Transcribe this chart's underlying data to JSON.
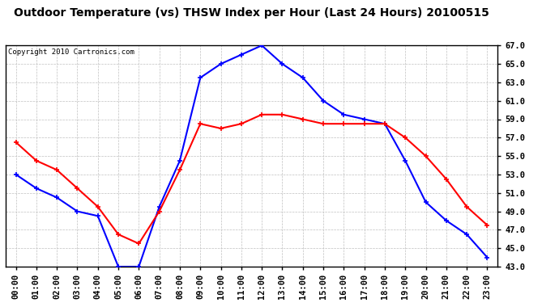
{
  "title": "Outdoor Temperature (vs) THSW Index per Hour (Last 24 Hours) 20100515",
  "copyright": "Copyright 2010 Cartronics.com",
  "hours": [
    "00:00",
    "01:00",
    "02:00",
    "03:00",
    "04:00",
    "05:00",
    "06:00",
    "07:00",
    "08:00",
    "09:00",
    "10:00",
    "11:00",
    "12:00",
    "13:00",
    "14:00",
    "15:00",
    "16:00",
    "17:00",
    "18:00",
    "19:00",
    "20:00",
    "21:00",
    "22:00",
    "23:00"
  ],
  "thsw": [
    53.0,
    51.5,
    50.5,
    49.0,
    48.5,
    43.0,
    43.0,
    49.5,
    54.5,
    63.5,
    65.0,
    66.0,
    67.0,
    65.0,
    63.5,
    61.0,
    59.5,
    59.0,
    58.5,
    54.5,
    50.0,
    48.0,
    46.5,
    44.0
  ],
  "temp": [
    56.5,
    54.5,
    53.5,
    51.5,
    49.5,
    46.5,
    45.5,
    49.0,
    53.5,
    58.5,
    58.0,
    58.5,
    59.5,
    59.5,
    59.0,
    58.5,
    58.5,
    58.5,
    58.5,
    57.0,
    55.0,
    52.5,
    49.5,
    47.5
  ],
  "blue_color": "#0000FF",
  "red_color": "#FF0000",
  "bg_color": "#FFFFFF",
  "plot_bg_color": "#FFFFFF",
  "grid_color": "#C0C0C0",
  "title_color": "#000000",
  "ylim_min": 43.0,
  "ylim_max": 67.0,
  "yticks": [
    43.0,
    45.0,
    47.0,
    49.0,
    51.0,
    53.0,
    55.0,
    57.0,
    59.0,
    61.0,
    63.0,
    65.0,
    67.0
  ],
  "title_fontsize": 10,
  "copyright_fontsize": 6.5,
  "tick_fontsize": 7.5,
  "marker": "+",
  "marker_size": 5,
  "linewidth": 1.5
}
